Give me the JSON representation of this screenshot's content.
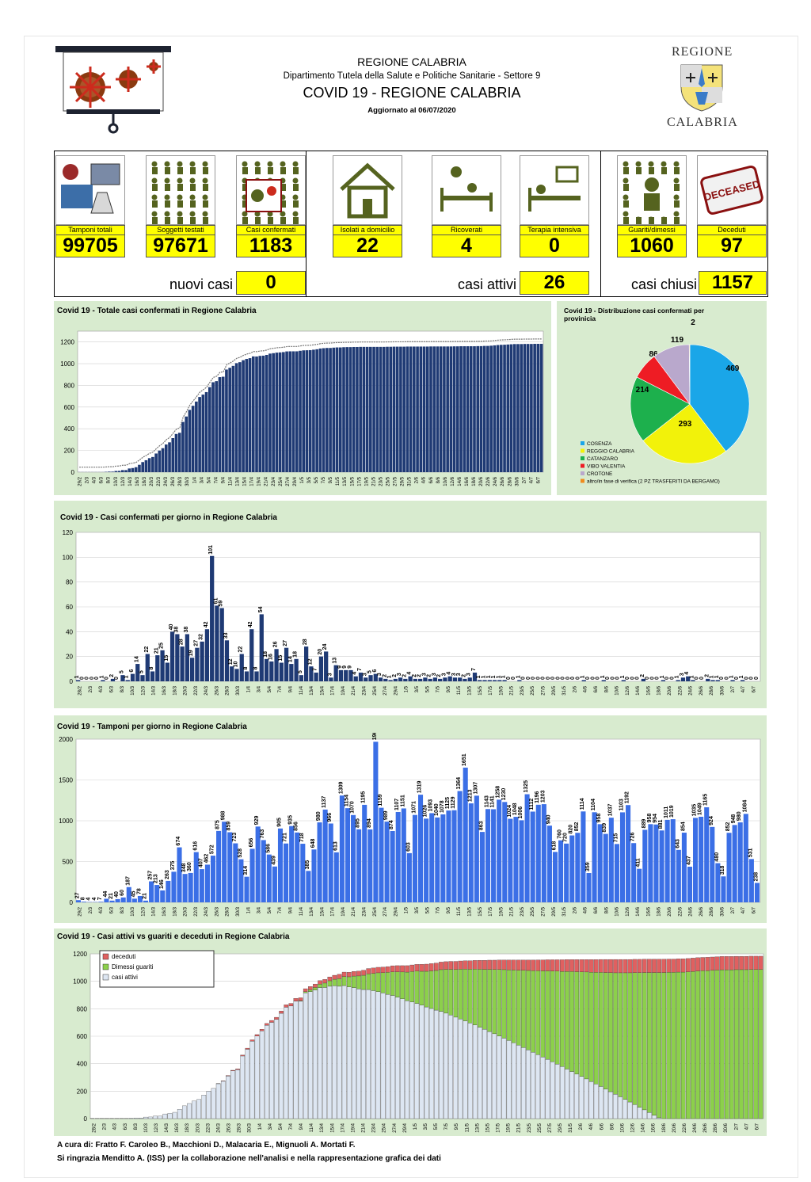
{
  "header": {
    "region": "REGIONE CALABRIA",
    "department": "Dipartimento Tutela della Salute e Politiche Sanitarie - Settore 9",
    "title": "COVID 19 - REGIONE CALABRIA",
    "updated": "Aggiornato al  06/07/2020",
    "logo_top": "REGIONE",
    "logo_bottom": "CALABRIA",
    "deceased_stamp": "DECEASED"
  },
  "kpis": [
    {
      "label": "Tamponi totali",
      "value": "99705",
      "icon": "lab-computer-icon"
    },
    {
      "label": "Soggetti testati",
      "value": "97671",
      "icon": "people-grid-icon"
    },
    {
      "label": "Casi confermati",
      "value": "1183",
      "icon": "virus-person-icon"
    },
    {
      "label": "Isolati a domicilio",
      "value": "22",
      "icon": "house-icon"
    },
    {
      "label": "Ricoverati",
      "value": "4",
      "icon": "hospital-bed-icon"
    },
    {
      "label": "Terapia intensiva",
      "value": "0",
      "icon": "intensive-care-icon"
    },
    {
      "label": "Guariti/dimessi",
      "value": "1060",
      "icon": "recovered-person-icon"
    },
    {
      "label": "Deceduti",
      "value": "97",
      "icon": "deceased-stamp-icon"
    }
  ],
  "summary": {
    "new_label": "nuovi casi",
    "new_value": "0",
    "active_label": "casi attivi",
    "active_value": "26",
    "closed_label": "casi chiusi",
    "closed_value": "1157"
  },
  "colors": {
    "panel": "#d8ebcf",
    "navy": "#1f3a74",
    "blue": "#3b6fe6",
    "yellow": "#ffff00",
    "green": "#8cd04b",
    "red": "#e06060",
    "pale": "#dde6f2",
    "c_cosenza": "#1aa6e8",
    "c_reggio": "#f2f20a",
    "c_catanzaro": "#1db04d",
    "c_vibo": "#ee1c24",
    "c_crotone": "#b9a8cc",
    "c_altro": "#f08c1e"
  },
  "chart_data": [
    {
      "type": "bar",
      "title": "Covid 19 - Totale casi confermati in Regione Calabria",
      "x_ticks": [
        "29/2",
        "2/3",
        "4/3",
        "6/3",
        "8/3",
        "10/3",
        "12/3",
        "14/3",
        "16/3",
        "18/3",
        "20/3",
        "22/3",
        "24/3",
        "26/3",
        "28/3",
        "30/3",
        "1/4",
        "3/4",
        "5/4",
        "7/4",
        "9/4",
        "11/4",
        "13/4",
        "15/4",
        "17/4",
        "19/4",
        "21/4",
        "23/4",
        "25/4",
        "27/4",
        "29/4",
        "1/5",
        "3/5",
        "5/5",
        "7/5",
        "9/5",
        "11/5",
        "13/5",
        "15/5",
        "17/5",
        "19/5",
        "21/5",
        "23/5",
        "25/5",
        "27/5",
        "29/5",
        "31/5",
        "2/6",
        "4/6",
        "6/6",
        "8/6",
        "10/6",
        "12/6",
        "14/6",
        "16/6",
        "18/6",
        "20/6",
        "22/6",
        "24/6",
        "26/6",
        "28/6",
        "30/6",
        "2/7",
        "4/7",
        "6/7"
      ],
      "y_ticks": [
        0,
        200,
        400,
        600,
        800,
        1000,
        1200
      ],
      "ylim": [
        0,
        1300
      ],
      "values": [
        1,
        1,
        1,
        1,
        1,
        1,
        1,
        1,
        3,
        5,
        5,
        11,
        12,
        19,
        19,
        34,
        38,
        46,
        68,
        93,
        110,
        129,
        140,
        172,
        199,
        221,
        255,
        275,
        314,
        352,
        363,
        463,
        513,
        574,
        612,
        651,
        693,
        715,
        738,
        784,
        829,
        839,
        876,
        880,
        946,
        962,
        980,
        1005,
        1014,
        1032,
        1044,
        1051,
        1067,
        1066,
        1072,
        1074,
        1081,
        1093,
        1097,
        1102,
        1104,
        1107,
        1113,
        1114,
        1114,
        1114,
        1119,
        1123,
        1124,
        1125,
        1129,
        1133,
        1140,
        1143,
        1145,
        1145,
        1148,
        1150,
        1150,
        1152,
        1153,
        1153,
        1154,
        1154,
        1155,
        1155,
        1155,
        1155,
        1155,
        1155,
        1155,
        1155,
        1156,
        1156,
        1157,
        1157,
        1157,
        1157,
        1158,
        1158,
        1158,
        1158,
        1158,
        1158,
        1158,
        1159,
        1159,
        1159,
        1159,
        1159,
        1159,
        1159,
        1160,
        1160,
        1161,
        1161,
        1161,
        1161,
        1161,
        1162,
        1162,
        1164,
        1164,
        1166,
        1169,
        1172,
        1174,
        1175,
        1177,
        1179,
        1181,
        1181,
        1181,
        1182,
        1182,
        1182,
        1183,
        1183,
        1183
      ]
    },
    {
      "type": "pie",
      "title": "Covid 19 - Distribuzione casi confermati per provinicia",
      "labels": [
        "COSENZA",
        "REGGIO CALABRIA",
        "CATANZARO",
        "VIBO VALENTIA",
        "CROTONE",
        "altro/in fase di verifica (2 PZ TRASFERITI DA BERGAMO)"
      ],
      "values": [
        469,
        293,
        214,
        86,
        119,
        2
      ],
      "colors": [
        "#1aa6e8",
        "#f2f20a",
        "#1db04d",
        "#ee1c24",
        "#b9a8cc",
        "#f08c1e"
      ],
      "legend": "bottom-left"
    },
    {
      "type": "bar",
      "title": "Covid 19 - Casi confermati per giorno in Regione Calabria",
      "x_ticks": [
        "28/2",
        "2/3",
        "4/3",
        "6/3",
        "8/3",
        "10/3",
        "12/3",
        "14/3",
        "16/3",
        "18/3",
        "20/3",
        "22/3",
        "24/3",
        "26/3",
        "28/3",
        "30/3",
        "1/4",
        "3/4",
        "5/4",
        "7/4",
        "9/4",
        "11/4",
        "13/4",
        "15/4",
        "17/4",
        "19/4",
        "21/4",
        "23/4",
        "25/4",
        "27/4",
        "29/4",
        "1/5",
        "3/5",
        "5/5",
        "7/5",
        "9/5",
        "11/5",
        "13/5",
        "15/5",
        "17/5",
        "19/5",
        "21/5",
        "23/5",
        "25/5",
        "27/5",
        "29/5",
        "31/5",
        "2/6",
        "4/6",
        "6/6",
        "8/6",
        "10/6",
        "12/6",
        "14/6",
        "16/6",
        "18/6",
        "20/6",
        "22/6",
        "24/6",
        "26/6",
        "28/6",
        "30/6",
        "2/7",
        "4/7",
        "6/7"
      ],
      "y_ticks": [
        0,
        20,
        40,
        60,
        80,
        100,
        120
      ],
      "ylim": [
        0,
        120
      ],
      "values": [
        1,
        0,
        0,
        0,
        0,
        1,
        0,
        2,
        0,
        5,
        1,
        6,
        14,
        5,
        22,
        8,
        21,
        25,
        15,
        40,
        38,
        28,
        38,
        19,
        27,
        32,
        42,
        101,
        61,
        59,
        33,
        12,
        10,
        22,
        8,
        42,
        8,
        54,
        18,
        16,
        26,
        15,
        27,
        14,
        18,
        5,
        28,
        12,
        7,
        20,
        24,
        3,
        13,
        9,
        9,
        9,
        4,
        7,
        3,
        5,
        6,
        3,
        2,
        1,
        2,
        3,
        2,
        4,
        2,
        2,
        3,
        2,
        3,
        2,
        3,
        4,
        3,
        3,
        2,
        3,
        7,
        1,
        1,
        1,
        1,
        1,
        1,
        0,
        0,
        1,
        0,
        0,
        0,
        0,
        0,
        0,
        0,
        0,
        0,
        0,
        0,
        0,
        1,
        0,
        0,
        0,
        1,
        0,
        0,
        0,
        1,
        0,
        0,
        0,
        2,
        0,
        0,
        0,
        1,
        0,
        0,
        1,
        3,
        4,
        1,
        0,
        0,
        2,
        1,
        1,
        0,
        0,
        1,
        0,
        1,
        0,
        0,
        0
      ]
    },
    {
      "type": "bar",
      "title": "Covid 19 - Tamponi per giorno in Regione Calabria",
      "x_ticks": [
        "29/2",
        "2/3",
        "4/3",
        "6/3",
        "8/3",
        "10/3",
        "12/3",
        "14/3",
        "16/3",
        "18/3",
        "20/3",
        "22/3",
        "24/3",
        "26/3",
        "28/3",
        "30/3",
        "1/4",
        "3/4",
        "5/4",
        "7/4",
        "9/4",
        "11/4",
        "13/4",
        "15/4",
        "17/4",
        "19/4",
        "21/4",
        "23/4",
        "25/4",
        "27/4",
        "29/4",
        "1/5",
        "3/5",
        "5/5",
        "7/5",
        "9/5",
        "11/5",
        "13/5",
        "15/5",
        "17/5",
        "19/5",
        "21/5",
        "23/5",
        "25/5",
        "27/5",
        "29/5",
        "31/5",
        "2/6",
        "4/6",
        "6/6",
        "8/6",
        "10/6",
        "12/6",
        "14/6",
        "16/6",
        "18/6",
        "20/6",
        "22/6",
        "24/6",
        "26/6",
        "28/6",
        "30/6",
        "2/7",
        "4/7",
        "6/7"
      ],
      "y_ticks": [
        0,
        500,
        1000,
        1500,
        2000
      ],
      "ylim": [
        0,
        2000
      ],
      "values": [
        27,
        8,
        4,
        4,
        7,
        44,
        21,
        40,
        60,
        187,
        45,
        78,
        21,
        257,
        213,
        146,
        263,
        375,
        674,
        348,
        360,
        616,
        407,
        462,
        572,
        875,
        988,
        859,
        723,
        528,
        314,
        656,
        929,
        763,
        586,
        439,
        905,
        721,
        935,
        856,
        718,
        385,
        648,
        980,
        1137,
        966,
        613,
        1309,
        1154,
        1070,
        895,
        1195,
        894,
        1968,
        1159,
        989,
        874,
        1107,
        1151,
        603,
        1071,
        1319,
        1026,
        1093,
        1040,
        1078,
        1125,
        1129,
        1364,
        1651,
        1213,
        1307,
        863,
        1143,
        1141,
        1258,
        1230,
        1024,
        1048,
        1006,
        1325,
        1112,
        1196,
        1203,
        940,
        618,
        760,
        720,
        820,
        852,
        1114,
        359,
        1104,
        958,
        839,
        1037,
        715,
        1103,
        1192,
        726,
        411,
        889,
        958,
        954,
        881,
        1011,
        1019,
        643,
        854,
        437,
        1035,
        1049,
        1165,
        924,
        480,
        318,
        852,
        948,
        980,
        1084,
        531,
        238
      ],
      "value_labels_visible": true
    },
    {
      "type": "area",
      "title": "Covid 19 - Casi attivi vs guariti e deceduti in Regione Calabria",
      "x_ticks": [
        "28/2",
        "2/3",
        "4/3",
        "6/3",
        "8/3",
        "10/3",
        "12/3",
        "14/3",
        "16/3",
        "18/3",
        "20/3",
        "22/3",
        "24/3",
        "26/3",
        "28/3",
        "30/3",
        "1/4",
        "3/4",
        "5/4",
        "7/4",
        "9/4",
        "11/4",
        "13/4",
        "15/4",
        "17/4",
        "19/4",
        "21/4",
        "23/4",
        "25/4",
        "27/4",
        "29/4",
        "1/5",
        "3/5",
        "5/5",
        "7/5",
        "9/5",
        "11/5",
        "13/5",
        "15/5",
        "17/5",
        "19/5",
        "21/5",
        "23/5",
        "25/5",
        "27/5",
        "29/5",
        "31/5",
        "2/6",
        "4/6",
        "6/6",
        "8/6",
        "10/6",
        "12/6",
        "14/6",
        "16/6",
        "18/6",
        "20/6",
        "22/6",
        "24/6",
        "26/6",
        "28/6",
        "30/6",
        "2/7",
        "4/7",
        "6/7"
      ],
      "y_ticks": [
        0,
        200,
        400,
        600,
        800,
        1000,
        1200
      ],
      "ylim": [
        0,
        1200
      ],
      "series": [
        {
          "name": "deceduti",
          "color": "#e06060"
        },
        {
          "name": "Dimessi guariti",
          "color": "#8cd04b"
        },
        {
          "name": "casi attivi",
          "color": "#dde6f2"
        }
      ],
      "legend": "top-left"
    }
  ],
  "footer": {
    "line1": "A cura di: Fratto F. Caroleo B., Macchioni D., Malacaria E., Mignuoli A. Mortati F.",
    "line2": "Si ringrazia Menditto A. (ISS) per la collaborazione nell'analisi e nella rappresentazione grafica dei dati"
  }
}
